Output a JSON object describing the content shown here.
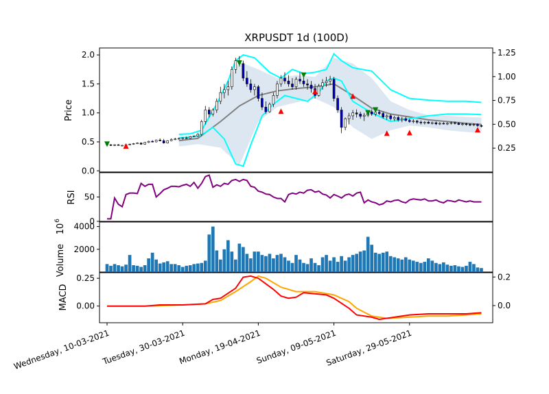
{
  "chart_data": {
    "type": "candlestick",
    "title": "XRPUSDT 1d (100D)",
    "x_tick_labels": [
      "Wednesday, 10-03-2021",
      "Tuesday, 30-03-2021",
      "Monday, 19-04-2021",
      "Sunday, 09-05-2021",
      "Saturday, 29-05-2021"
    ],
    "x_tick_days": [
      0,
      20,
      40,
      60,
      80
    ],
    "x_range_days": [
      -2,
      102
    ],
    "panels": {
      "price": {
        "ylabel": "Price",
        "ylim": [
          -0.02,
          2.12
        ],
        "yticks": [
          "0.0",
          "0.5",
          "1.0",
          "1.5",
          "2.0"
        ],
        "ytick_values": [
          0.0,
          0.5,
          1.0,
          1.5,
          2.0
        ],
        "right_ylim": [
          0.0,
          1.3
        ],
        "right_yticks": [
          "0.25",
          "0.50",
          "0.75",
          "1.00",
          "1.25"
        ],
        "right_ytick_values": [
          0.25,
          0.5,
          0.75,
          1.0,
          1.25
        ]
      },
      "rsi": {
        "ylabel": "RSI",
        "ylim": [
          0,
          100
        ],
        "yticks": [
          "0",
          "50"
        ],
        "ytick_values": [
          0,
          50
        ]
      },
      "volume": {
        "ylabel": "Volume",
        "unit_label": "10",
        "unit_exponent": "6",
        "ylim": [
          0,
          4400
        ],
        "yticks": [
          "2000",
          "4000"
        ],
        "ytick_values": [
          2000,
          4000
        ]
      },
      "macd": {
        "ylabel": "MACD",
        "ylim": [
          -0.15,
          0.3
        ],
        "yticks": [
          "0.00",
          "0.25"
        ],
        "ytick_values": [
          0.0,
          0.25
        ],
        "right_ylim": [
          -0.12,
          0.23
        ],
        "right_yticks": [
          "0.0",
          "0.2"
        ],
        "right_ytick_values": [
          0.0,
          0.2
        ]
      }
    },
    "colors": {
      "up_candle": "#ffffff",
      "down_candle": "#0000cd",
      "wick": "#000000",
      "bollinger_band_fill": "#dbe6f1",
      "bollinger_middle": "#808080",
      "keltner_channel": "#00ffff",
      "buy_marker": "#008000",
      "sell_marker": "#ff0000",
      "rsi_line": "#800080",
      "volume_bar": "#1f77b4",
      "macd_line": "#ff0000",
      "signal_line": "#ffa500"
    },
    "candles_ohlc": [
      [
        0.46,
        0.47,
        0.44,
        0.45
      ],
      [
        0.45,
        0.46,
        0.43,
        0.44
      ],
      [
        0.44,
        0.46,
        0.43,
        0.45
      ],
      [
        0.45,
        0.46,
        0.44,
        0.44
      ],
      [
        0.44,
        0.45,
        0.43,
        0.44
      ],
      [
        0.44,
        0.46,
        0.43,
        0.45
      ],
      [
        0.45,
        0.47,
        0.44,
        0.46
      ],
      [
        0.46,
        0.48,
        0.45,
        0.47
      ],
      [
        0.47,
        0.49,
        0.46,
        0.48
      ],
      [
        0.48,
        0.49,
        0.45,
        0.46
      ],
      [
        0.46,
        0.5,
        0.45,
        0.49
      ],
      [
        0.49,
        0.52,
        0.48,
        0.51
      ],
      [
        0.51,
        0.53,
        0.49,
        0.5
      ],
      [
        0.5,
        0.54,
        0.49,
        0.53
      ],
      [
        0.53,
        0.56,
        0.51,
        0.52
      ],
      [
        0.52,
        0.55,
        0.47,
        0.48
      ],
      [
        0.48,
        0.53,
        0.47,
        0.52
      ],
      [
        0.52,
        0.56,
        0.51,
        0.54
      ],
      [
        0.54,
        0.57,
        0.53,
        0.55
      ],
      [
        0.55,
        0.57,
        0.54,
        0.56
      ],
      [
        0.56,
        0.58,
        0.54,
        0.57
      ],
      [
        0.57,
        0.59,
        0.55,
        0.56
      ],
      [
        0.56,
        0.6,
        0.55,
        0.59
      ],
      [
        0.59,
        0.61,
        0.58,
        0.6
      ],
      [
        0.6,
        0.65,
        0.58,
        0.63
      ],
      [
        0.63,
        0.88,
        0.6,
        0.85
      ],
      [
        0.85,
        1.12,
        0.8,
        1.05
      ],
      [
        1.05,
        1.1,
        0.92,
        0.98
      ],
      [
        0.98,
        1.08,
        0.94,
        1.05
      ],
      [
        1.05,
        1.25,
        1.0,
        1.2
      ],
      [
        1.2,
        1.45,
        1.15,
        1.35
      ],
      [
        1.35,
        1.5,
        1.25,
        1.4
      ],
      [
        1.4,
        1.55,
        1.3,
        1.45
      ],
      [
        1.45,
        1.8,
        1.4,
        1.75
      ],
      [
        1.75,
        1.95,
        1.68,
        1.9
      ],
      [
        1.9,
        1.98,
        1.8,
        1.85
      ],
      [
        1.85,
        1.9,
        1.55,
        1.6
      ],
      [
        1.6,
        1.72,
        1.45,
        1.5
      ],
      [
        1.5,
        1.58,
        1.35,
        1.4
      ],
      [
        1.4,
        1.5,
        1.3,
        1.45
      ],
      [
        1.45,
        1.48,
        1.2,
        1.25
      ],
      [
        1.25,
        1.35,
        1.05,
        1.1
      ],
      [
        1.1,
        1.2,
        0.98,
        1.02
      ],
      [
        1.02,
        1.18,
        1.0,
        1.15
      ],
      [
        1.15,
        1.35,
        1.1,
        1.3
      ],
      [
        1.3,
        1.55,
        1.25,
        1.5
      ],
      [
        1.5,
        1.65,
        1.45,
        1.6
      ],
      [
        1.6,
        1.7,
        1.5,
        1.55
      ],
      [
        1.55,
        1.65,
        1.45,
        1.5
      ],
      [
        1.5,
        1.6,
        1.4,
        1.45
      ],
      [
        1.45,
        1.62,
        1.4,
        1.58
      ],
      [
        1.58,
        1.7,
        1.5,
        1.55
      ],
      [
        1.55,
        1.68,
        1.45,
        1.5
      ],
      [
        1.5,
        1.58,
        1.4,
        1.48
      ],
      [
        1.48,
        1.55,
        1.35,
        1.42
      ],
      [
        1.42,
        1.5,
        1.25,
        1.3
      ],
      [
        1.3,
        1.5,
        1.28,
        1.46
      ],
      [
        1.46,
        1.58,
        1.4,
        1.52
      ],
      [
        1.52,
        1.62,
        1.45,
        1.55
      ],
      [
        1.55,
        1.64,
        1.48,
        1.58
      ],
      [
        1.58,
        1.62,
        1.2,
        1.25
      ],
      [
        1.25,
        1.3,
        1.0,
        1.05
      ],
      [
        1.05,
        1.1,
        0.65,
        0.75
      ],
      [
        0.75,
        0.92,
        0.7,
        0.9
      ],
      [
        0.9,
        1.0,
        0.8,
        0.95
      ],
      [
        0.95,
        1.05,
        0.88,
        1.0
      ],
      [
        1.0,
        1.06,
        0.92,
        0.98
      ],
      [
        0.98,
        1.02,
        0.9,
        0.94
      ],
      [
        0.94,
        1.0,
        0.86,
        0.96
      ],
      [
        0.96,
        1.05,
        0.93,
        1.02
      ],
      [
        1.02,
        1.06,
        0.95,
        0.98
      ],
      [
        0.98,
        1.04,
        0.94,
        1.01
      ],
      [
        1.01,
        1.05,
        0.96,
        0.99
      ],
      [
        0.99,
        1.02,
        0.9,
        0.93
      ],
      [
        0.93,
        0.98,
        0.88,
        0.95
      ],
      [
        0.95,
        0.98,
        0.87,
        0.9
      ],
      [
        0.9,
        0.95,
        0.86,
        0.92
      ],
      [
        0.92,
        0.95,
        0.85,
        0.88
      ],
      [
        0.88,
        0.93,
        0.84,
        0.9
      ],
      [
        0.9,
        0.93,
        0.85,
        0.87
      ],
      [
        0.87,
        0.9,
        0.83,
        0.85
      ],
      [
        0.85,
        0.89,
        0.82,
        0.86
      ],
      [
        0.86,
        0.88,
        0.81,
        0.84
      ],
      [
        0.84,
        0.87,
        0.8,
        0.83
      ],
      [
        0.83,
        0.86,
        0.8,
        0.84
      ],
      [
        0.84,
        0.86,
        0.81,
        0.82
      ],
      [
        0.82,
        0.85,
        0.8,
        0.83
      ],
      [
        0.83,
        0.85,
        0.79,
        0.81
      ],
      [
        0.81,
        0.84,
        0.79,
        0.82
      ],
      [
        0.82,
        0.84,
        0.8,
        0.81
      ],
      [
        0.81,
        0.84,
        0.79,
        0.82
      ],
      [
        0.82,
        0.85,
        0.8,
        0.83
      ],
      [
        0.83,
        0.85,
        0.8,
        0.82
      ],
      [
        0.82,
        0.84,
        0.79,
        0.8
      ],
      [
        0.8,
        0.83,
        0.78,
        0.81
      ],
      [
        0.81,
        0.83,
        0.78,
        0.8
      ],
      [
        0.8,
        0.82,
        0.77,
        0.79
      ],
      [
        0.79,
        0.82,
        0.77,
        0.8
      ],
      [
        0.8,
        0.82,
        0.76,
        0.78
      ],
      [
        0.78,
        0.8,
        0.75,
        0.77
      ]
    ],
    "bollinger_middle": [
      [
        19,
        0.52
      ],
      [
        24,
        0.56
      ],
      [
        30,
        0.85
      ],
      [
        35,
        1.12
      ],
      [
        40,
        1.3
      ],
      [
        45,
        1.38
      ],
      [
        50,
        1.42
      ],
      [
        55,
        1.45
      ],
      [
        60,
        1.5
      ],
      [
        65,
        1.3
      ],
      [
        70,
        1.08
      ],
      [
        75,
        0.98
      ],
      [
        80,
        0.93
      ],
      [
        85,
        0.88
      ],
      [
        90,
        0.85
      ],
      [
        95,
        0.82
      ],
      [
        99,
        0.8
      ]
    ],
    "bollinger_upper": [
      [
        19,
        0.58
      ],
      [
        24,
        0.62
      ],
      [
        30,
        1.3
      ],
      [
        35,
        1.88
      ],
      [
        40,
        1.75
      ],
      [
        45,
        1.6
      ],
      [
        50,
        1.65
      ],
      [
        55,
        1.62
      ],
      [
        60,
        1.95
      ],
      [
        65,
        1.85
      ],
      [
        70,
        1.6
      ],
      [
        75,
        1.2
      ],
      [
        80,
        1.05
      ],
      [
        85,
        0.96
      ],
      [
        90,
        0.95
      ],
      [
        95,
        0.93
      ],
      [
        99,
        0.92
      ]
    ],
    "bollinger_lower": [
      [
        19,
        0.42
      ],
      [
        24,
        0.46
      ],
      [
        30,
        0.4
      ],
      [
        35,
        0.1
      ],
      [
        40,
        0.85
      ],
      [
        45,
        1.1
      ],
      [
        50,
        1.18
      ],
      [
        55,
        1.25
      ],
      [
        60,
        1.1
      ],
      [
        65,
        0.75
      ],
      [
        70,
        0.55
      ],
      [
        75,
        0.7
      ],
      [
        80,
        0.78
      ],
      [
        85,
        0.75
      ],
      [
        90,
        0.7
      ],
      [
        95,
        0.67
      ],
      [
        99,
        0.65
      ]
    ],
    "keltner_upper": [
      [
        19,
        0.63
      ],
      [
        22,
        0.64
      ],
      [
        25,
        0.7
      ],
      [
        29,
        1.15
      ],
      [
        32,
        1.55
      ],
      [
        34,
        1.9
      ],
      [
        36,
        2.0
      ],
      [
        39,
        1.95
      ],
      [
        43,
        1.7
      ],
      [
        46,
        1.6
      ],
      [
        49,
        1.75
      ],
      [
        52,
        1.68
      ],
      [
        55,
        1.7
      ],
      [
        58,
        1.75
      ],
      [
        60,
        2.02
      ],
      [
        62,
        1.9
      ],
      [
        65,
        1.78
      ],
      [
        70,
        1.72
      ],
      [
        75,
        1.4
      ],
      [
        80,
        1.25
      ],
      [
        85,
        1.22
      ],
      [
        90,
        1.2
      ],
      [
        95,
        1.2
      ],
      [
        99,
        1.18
      ]
    ],
    "keltner_lower": [
      [
        19,
        0.57
      ],
      [
        22,
        0.58
      ],
      [
        25,
        0.62
      ],
      [
        28,
        0.75
      ],
      [
        31,
        0.55
      ],
      [
        34,
        0.12
      ],
      [
        36,
        0.08
      ],
      [
        38,
        0.45
      ],
      [
        41,
        0.95
      ],
      [
        44,
        1.15
      ],
      [
        47,
        1.3
      ],
      [
        50,
        1.25
      ],
      [
        53,
        1.2
      ],
      [
        56,
        1.35
      ],
      [
        58,
        1.55
      ],
      [
        60,
        1.6
      ],
      [
        62,
        1.55
      ],
      [
        65,
        1.2
      ],
      [
        70,
        1.0
      ],
      [
        75,
        0.85
      ],
      [
        80,
        0.9
      ],
      [
        85,
        0.95
      ],
      [
        90,
        0.98
      ],
      [
        95,
        0.98
      ],
      [
        99,
        0.97
      ]
    ],
    "buy_markers": [
      [
        0,
        0.46
      ],
      [
        35,
        1.86
      ],
      [
        52,
        1.65
      ],
      [
        69,
        1.0
      ],
      [
        71,
        1.05
      ]
    ],
    "sell_markers": [
      [
        5,
        0.43
      ],
      [
        46,
        1.03
      ],
      [
        55,
        1.37
      ],
      [
        65,
        1.29
      ],
      [
        74,
        0.65
      ],
      [
        80,
        0.66
      ],
      [
        98,
        0.71
      ]
    ],
    "rsi": [
      5,
      5,
      48,
      35,
      30,
      55,
      58,
      58,
      57,
      78,
      72,
      76,
      76,
      50,
      57,
      65,
      68,
      72,
      72,
      71,
      74,
      76,
      72,
      80,
      68,
      78,
      92,
      95,
      70,
      75,
      72,
      78,
      76,
      84,
      86,
      82,
      86,
      84,
      72,
      70,
      62,
      60,
      56,
      55,
      50,
      47,
      47,
      40,
      55,
      58,
      56,
      60,
      58,
      64,
      65,
      60,
      62,
      56,
      54,
      48,
      55,
      52,
      48,
      54,
      56,
      52,
      58,
      60,
      38,
      44,
      40,
      38,
      34,
      36,
      42,
      40,
      43,
      44,
      40,
      38,
      44,
      46,
      45,
      44,
      46,
      42,
      42,
      44,
      40,
      38,
      43,
      42,
      40,
      44,
      42,
      40,
      42,
      40,
      40,
      40
    ],
    "volume": [
      700,
      550,
      700,
      600,
      500,
      650,
      1500,
      600,
      550,
      450,
      600,
      1200,
      1700,
      1100,
      750,
      850,
      950,
      700,
      700,
      600,
      450,
      550,
      600,
      700,
      750,
      800,
      1000,
      3300,
      4000,
      1900,
      1100,
      2000,
      2800,
      1800,
      1100,
      2500,
      2200,
      1600,
      1200,
      1800,
      1800,
      1500,
      1400,
      1600,
      1200,
      1500,
      1600,
      1300,
      1000,
      800,
      1500,
      1100,
      800,
      700,
      1200,
      800,
      600,
      1300,
      1500,
      1000,
      1300,
      900,
      1400,
      1000,
      1300,
      1500,
      1600,
      1800,
      1900,
      3100,
      2400,
      1700,
      1600,
      1700,
      1800,
      1400,
      1300,
      1200,
      1100,
      1300,
      1100,
      1000,
      900,
      800,
      900,
      1200,
      1000,
      800,
      700,
      850,
      650,
      550,
      600,
      500,
      450,
      550,
      900,
      700,
      400,
      350
    ],
    "macd": [
      [
        0,
        0.0
      ],
      [
        10,
        0.0
      ],
      [
        14,
        0.01
      ],
      [
        20,
        0.01
      ],
      [
        26,
        0.02
      ],
      [
        28,
        0.06
      ],
      [
        30,
        0.07
      ],
      [
        34,
        0.16
      ],
      [
        36,
        0.26
      ],
      [
        38,
        0.27
      ],
      [
        40,
        0.25
      ],
      [
        44,
        0.15
      ],
      [
        46,
        0.09
      ],
      [
        48,
        0.07
      ],
      [
        50,
        0.08
      ],
      [
        52,
        0.12
      ],
      [
        55,
        0.11
      ],
      [
        58,
        0.1
      ],
      [
        60,
        0.07
      ],
      [
        64,
        -0.02
      ],
      [
        66,
        -0.08
      ],
      [
        70,
        -0.1
      ],
      [
        72,
        -0.12
      ],
      [
        76,
        -0.1
      ],
      [
        80,
        -0.08
      ],
      [
        85,
        -0.07
      ],
      [
        90,
        -0.07
      ],
      [
        95,
        -0.07
      ],
      [
        99,
        -0.06
      ]
    ],
    "signal": [
      [
        0,
        0.0
      ],
      [
        10,
        0.0
      ],
      [
        20,
        0.01
      ],
      [
        26,
        0.02
      ],
      [
        30,
        0.05
      ],
      [
        34,
        0.13
      ],
      [
        38,
        0.22
      ],
      [
        40,
        0.27
      ],
      [
        42,
        0.25
      ],
      [
        46,
        0.17
      ],
      [
        50,
        0.13
      ],
      [
        55,
        0.13
      ],
      [
        60,
        0.1
      ],
      [
        64,
        0.04
      ],
      [
        66,
        -0.02
      ],
      [
        70,
        -0.09
      ],
      [
        74,
        -0.11
      ],
      [
        80,
        -0.1
      ],
      [
        85,
        -0.09
      ],
      [
        90,
        -0.09
      ],
      [
        95,
        -0.08
      ],
      [
        99,
        -0.07
      ]
    ]
  }
}
